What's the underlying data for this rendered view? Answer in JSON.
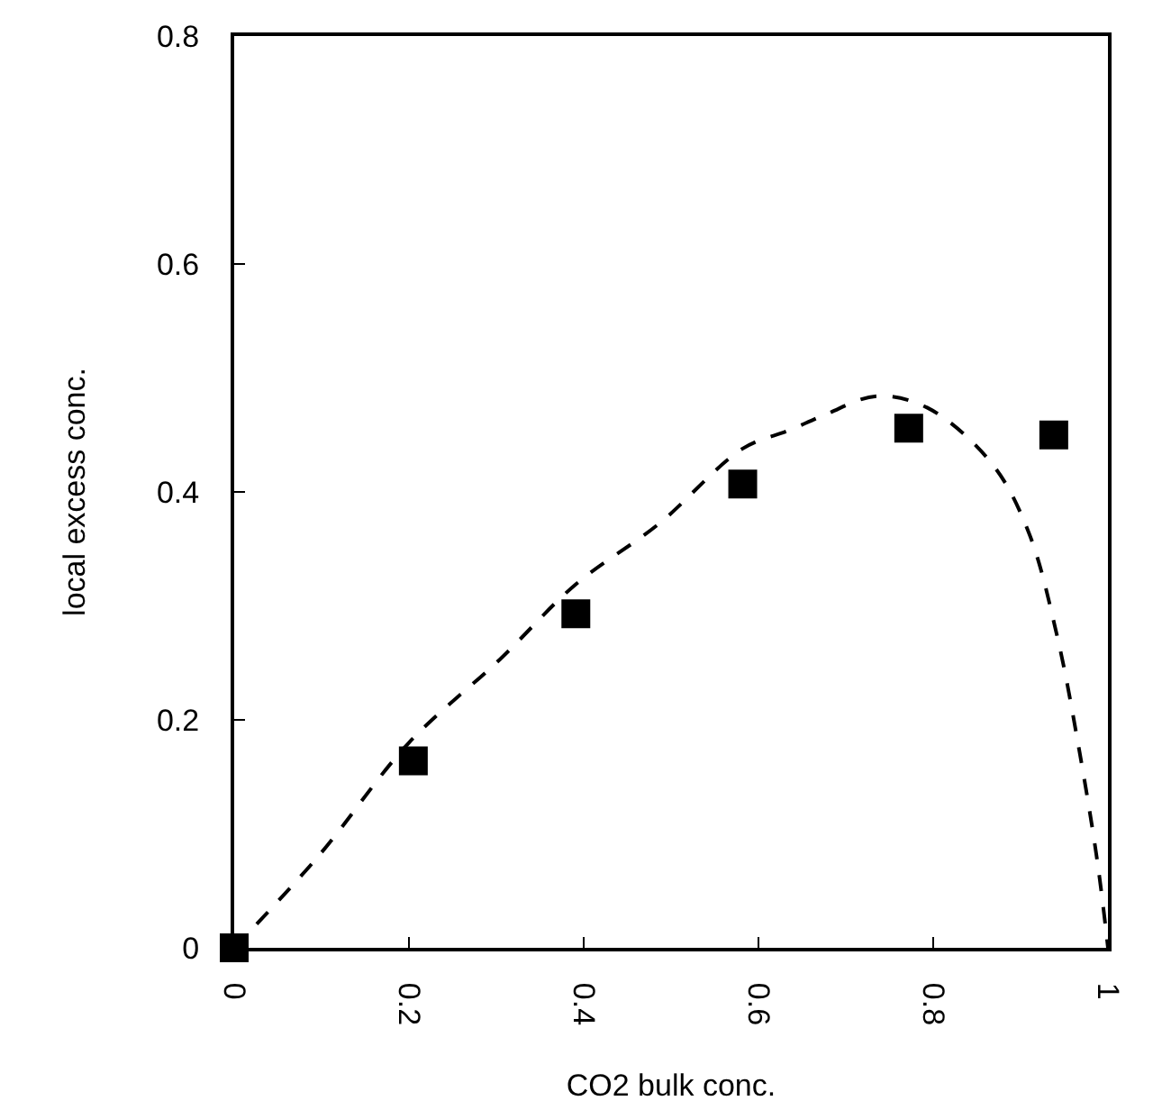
{
  "chart_data": {
    "type": "scatter",
    "xlabel": "CO2 bulk conc.",
    "ylabel": "local excess conc.",
    "xlim": [
      0,
      1
    ],
    "xticks": [
      0,
      0.2,
      0.4,
      0.6,
      0.8,
      1
    ],
    "ylim": [
      0,
      0.8
    ],
    "yticks": [
      0,
      0.2,
      0.4,
      0.6,
      0.8
    ],
    "grid": false,
    "marker": "square",
    "series": [
      {
        "color": "#000000",
        "x": [
          0,
          0.205,
          0.391,
          0.582,
          0.772,
          0.938
        ],
        "values": [
          0,
          0.164,
          0.293,
          0.407,
          0.456,
          0.45
        ]
      },
      {
        "type": "line",
        "color": "#000000",
        "line_style": "dashed",
        "marker": "none",
        "x": [
          0,
          0.097,
          0.2,
          0.304,
          0.391,
          0.486,
          0.582,
          0.635,
          0.677,
          0.735,
          0.793,
          0.867,
          0.909,
          0.942,
          0.967,
          0.988,
          1
        ],
        "values": [
          0,
          0.081,
          0.18,
          0.253,
          0.319,
          0.372,
          0.438,
          0.454,
          0.468,
          0.484,
          0.474,
          0.425,
          0.365,
          0.273,
          0.174,
          0.075,
          0
        ]
      }
    ]
  }
}
